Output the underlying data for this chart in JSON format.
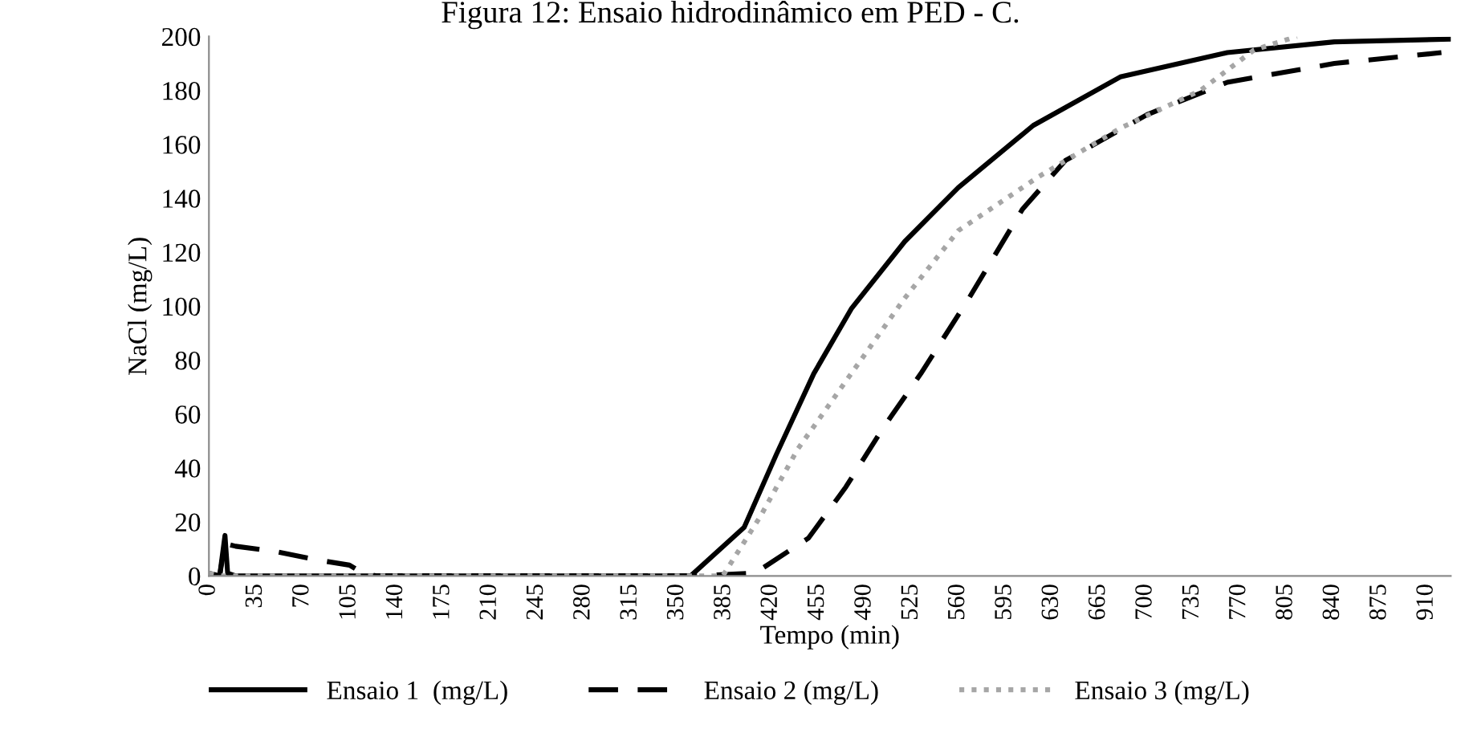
{
  "chart_data": {
    "type": "line",
    "title": "Figura 12: Ensaio hidrodinâmico em PED - C.",
    "xlabel": "Tempo (min)",
    "ylabel": "NaCl (mg/L)",
    "xlim": [
      0,
      928
    ],
    "xticks": [
      0,
      35,
      70,
      105,
      140,
      175,
      210,
      245,
      280,
      315,
      350,
      385,
      420,
      455,
      490,
      525,
      560,
      595,
      630,
      665,
      700,
      735,
      770,
      805,
      840,
      875,
      910
    ],
    "ylim": [
      0,
      200
    ],
    "yticks": [
      0,
      20,
      40,
      60,
      80,
      100,
      120,
      140,
      160,
      180,
      200
    ],
    "grid": false,
    "legend": "bottom",
    "marker": "none",
    "series": [
      {
        "name": "Ensaio 1  (mg/L)",
        "color": "#000000",
        "line_style": "solid",
        "x": [
          0,
          8,
          12,
          14,
          20,
          360,
          400,
          424,
          452,
          480,
          520,
          560,
          616,
          681,
          761,
          841,
          927
        ],
        "values": [
          1,
          0,
          15,
          1,
          0,
          0,
          18,
          45,
          75,
          99,
          124,
          144,
          167,
          185,
          194,
          198,
          199
        ]
      },
      {
        "name": "Ensaio 2 (mg/L)",
        "color": "#000000",
        "line_style": "dashed",
        "x": [
          0,
          8,
          12,
          20,
          50,
          80,
          105,
          115,
          125,
          360,
          408,
          448,
          476,
          504,
          532,
          568,
          608,
          640,
          701,
          761,
          841,
          921
        ],
        "values": [
          0,
          0,
          12,
          11,
          9,
          6,
          4,
          1,
          0,
          0,
          1,
          14,
          33,
          55,
          75,
          103,
          136,
          154,
          171,
          183,
          190,
          194
        ]
      },
      {
        "name": "Ensaio 3 (mg/L)",
        "color": "#a6a6a6",
        "line_style": "dotted",
        "x": [
          0,
          10,
          384,
          412,
          440,
          480,
          520,
          560,
          620,
          681,
          741,
          781,
          813
        ],
        "values": [
          1,
          0,
          0,
          22,
          47,
          75,
          103,
          128,
          148,
          166,
          180,
          195,
          200
        ]
      }
    ]
  }
}
